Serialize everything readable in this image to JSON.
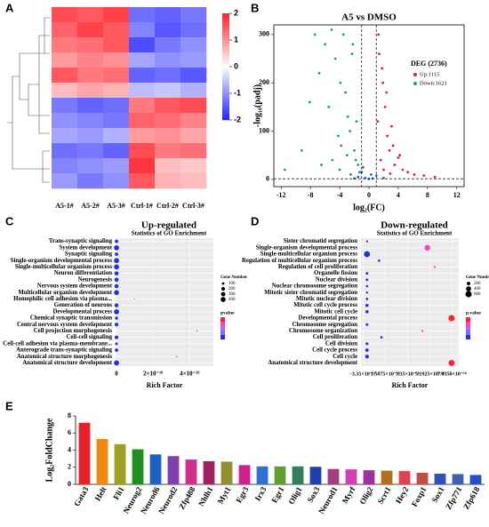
{
  "chart_data": [
    {
      "type": "heatmap",
      "panel": "A",
      "columns": [
        "A5-1#",
        "A5-2#",
        "A5-3#",
        "Ctrl-1#",
        "Ctrl-2#",
        "Ctrl-3#"
      ],
      "matrix": [
        [
          1.6,
          1.5,
          1.7,
          -1.3,
          -1.4,
          -1.2
        ],
        [
          1.4,
          1.7,
          1.5,
          -1.1,
          -1.5,
          -1.3
        ],
        [
          1.2,
          1.3,
          1.5,
          -1.6,
          -1.2,
          -1.0
        ],
        [
          0.9,
          1.1,
          1.0,
          -0.8,
          -1.0,
          -0.9
        ],
        [
          1.5,
          1.2,
          1.3,
          -1.4,
          -1.3,
          -1.5
        ],
        [
          0.6,
          0.8,
          0.7,
          -0.6,
          -0.5,
          -0.7
        ],
        [
          -1.2,
          -1.4,
          -1.3,
          1.2,
          1.5,
          1.6
        ],
        [
          -1.0,
          -1.1,
          -1.2,
          1.4,
          1.3,
          1.1
        ],
        [
          -0.8,
          -0.9,
          -0.7,
          0.9,
          1.0,
          0.8
        ],
        [
          -1.3,
          -1.2,
          -1.4,
          1.6,
          1.2,
          1.3
        ],
        [
          -1.1,
          -1.0,
          -0.9,
          1.8,
          0.6,
          0.5
        ],
        [
          -0.9,
          -1.2,
          -1.0,
          1.5,
          0.7,
          0.6
        ]
      ],
      "clim": [
        -2,
        2
      ],
      "colorbar_ticks": [
        2,
        1,
        0,
        -1,
        -2
      ]
    },
    {
      "type": "volcano",
      "panel": "B",
      "title": "A5 vs DMSO",
      "xlabel": "log₂(FC)",
      "ylabel": "-log₁₀(padj)",
      "legend_title": "DEG (2736)",
      "xlim": [
        -13,
        13
      ],
      "ylim": [
        -15,
        320
      ],
      "xticks": [
        -12,
        -8,
        -4,
        0,
        4,
        8,
        12
      ],
      "yticks": [
        0,
        100,
        200,
        300
      ],
      "vlines": [
        -1,
        1
      ],
      "hlines": [
        1.3
      ],
      "series": [
        {
          "name": "Up:1115",
          "color": "#e8203a",
          "x": [
            1.2,
            1.4,
            1.6,
            1.9,
            2.2,
            2.5,
            2.8,
            3.1,
            3.5,
            4.0,
            4.6,
            5.3,
            6.2,
            7.5,
            9.0,
            1.3,
            2.0,
            2.4,
            3.3,
            1.8,
            2.9,
            4.2
          ],
          "values": [
            120,
            260,
            40,
            200,
            150,
            90,
            60,
            110,
            30,
            45,
            20,
            15,
            10,
            8,
            5,
            300,
            20,
            180,
            70,
            230,
            12,
            50
          ]
        },
        {
          "name": "Down:1621",
          "color": "#1aa37a",
          "x": [
            -11.5,
            -9.2,
            -8.1,
            -7.4,
            -6.8,
            -6.0,
            -5.5,
            -5.1,
            -4.6,
            -4.2,
            -3.9,
            -3.5,
            -3.2,
            -2.9,
            -2.6,
            -2.3,
            -2.0,
            -1.8,
            -1.5,
            -1.3,
            -3.0,
            -4.0,
            -2.5,
            -1.7,
            -6.5,
            -3.8,
            -2.2,
            -5.0
          ],
          "values": [
            20,
            60,
            160,
            300,
            220,
            280,
            150,
            310,
            250,
            90,
            200,
            300,
            180,
            130,
            100,
            260,
            60,
            40,
            30,
            15,
            50,
            20,
            10,
            120,
            30,
            70,
            280,
            40
          ]
        },
        {
          "color": "#3060c0",
          "x": [
            -1.5,
            -1,
            -0.5,
            0,
            0.5,
            1,
            -0.8,
            0.3,
            -2,
            2
          ],
          "values": [
            5,
            15,
            3,
            1,
            2,
            8,
            25,
            10,
            2,
            3
          ]
        }
      ]
    },
    {
      "type": "dotplot",
      "panel": "C",
      "title": "Up-regulated",
      "subtitle": "Statistics of GO Enrichment",
      "xlabel": "Rich Factor",
      "categories": [
        "Trans-synaptic signaling",
        "System development",
        "Synaptic signaling",
        "Single-organism developmental process",
        "Single-multicellular organism process",
        "Neuron differentiation",
        "Neurogenesis",
        "Nervous system development",
        "Multicellular organism development",
        "Homophilic cell adhesion via plasma...",
        "Generation of neurons",
        "Developmental process",
        "Chemical synaptic transmission",
        "Central nervous system development",
        "Cell projection morphogenesis",
        "Cell-cell signaling",
        "Cell-cell adhesion via plasma-membrane...",
        "Anterograde trans-synaptic signaling",
        "Anatomical structure morphogenesis",
        "Anatomical structure development"
      ],
      "values": [
        0,
        0,
        0,
        0,
        0,
        0,
        0,
        0,
        0,
        1e-16,
        0,
        0,
        0,
        0,
        4.4e-16,
        0,
        0,
        0,
        3.3e-16,
        0
      ],
      "sizes": [
        180,
        400,
        180,
        400,
        400,
        250,
        260,
        260,
        380,
        20,
        240,
        400,
        150,
        200,
        20,
        200,
        120,
        180,
        30,
        400
      ],
      "colors": [
        "#2a2af0",
        "#2a2af0",
        "#2a2af0",
        "#2a2af0",
        "#2a2af0",
        "#2a2af0",
        "#2a2af0",
        "#2a2af0",
        "#2a2af0",
        "#c060ff",
        "#2a2af0",
        "#2a2af0",
        "#2a2af0",
        "#2a2af0",
        "#ff2050",
        "#2a2af0",
        "#2a2af0",
        "#2a2af0",
        "#ff40c0",
        "#2a2af0"
      ],
      "xlim": [
        -5e-18,
        5.3e-16
      ],
      "xticks": [
        0,
        {
          "value": 2e-16,
          "label": "2×10⁻¹⁶"
        },
        {
          "value": 4e-16,
          "label": "4×10⁻¹⁶"
        }
      ],
      "size_title": "Gene Number",
      "size_ticks": [
        100,
        200,
        300,
        400
      ],
      "color_title": "pvalue"
    },
    {
      "type": "dotplot",
      "panel": "D",
      "title": "Down-regulated",
      "subtitle": "Statistics of GO Enrichment",
      "xlabel": "Rich Factor",
      "categories": [
        "Sister chromatid segregation",
        "Single-organism developmental process",
        "Single-multicellular organism process",
        "Regulation of multicellular organism process",
        "Regulation of cell proliferation",
        "Organelle fission",
        "Nuclear division",
        "Nuclear chromosome segregation",
        "Mitotic sister chromatid segregation",
        "Mitotic nuclear division",
        "Mitotic cell cycle process",
        "Mitotic cell cycle",
        "Developmental process",
        "Chromosome segregation",
        "Chromosome organization",
        "Cell proliferation",
        "Cell division",
        "Cell cycle process",
        "Cell cycle",
        "Anatomical structure development"
      ],
      "values": [
        0,
        5e-18,
        0,
        1e-18,
        5.6e-18,
        0,
        0,
        0,
        0,
        0,
        0,
        0,
        7e-18,
        0,
        4.6e-18,
        1.2e-18,
        0,
        0,
        0,
        7e-18
      ],
      "sizes": [
        60,
        500,
        560,
        80,
        60,
        100,
        100,
        80,
        70,
        90,
        150,
        160,
        600,
        100,
        60,
        90,
        120,
        180,
        200,
        560
      ],
      "colors": [
        "#2a2af0",
        "#ff40c0",
        "#2a2af0",
        "#2a2af0",
        "#ff40c0",
        "#2a2af0",
        "#2a2af0",
        "#2a2af0",
        "#2a2af0",
        "#2a2af0",
        "#2a2af0",
        "#2a2af0",
        "#ff2030",
        "#2a2af0",
        "#ff40c0",
        "#2a2af0",
        "#2a2af0",
        "#2a2af0",
        "#2a2af0",
        "#ff2030"
      ],
      "xlim": [
        -5e-19,
        7.6e-18
      ],
      "xticks": [
        {
          "value": -3.35e-19,
          "label": "-3.35×10⁻¹⁹"
        },
        {
          "value": 1.5075e-18,
          "label": "1.5075×10⁻¹⁸"
        },
        {
          "value": 3.35e-18,
          "label": "3.35×10⁻¹⁸"
        },
        {
          "value": 5.1925e-18,
          "label": "5.1925×10⁻¹⁸"
        },
        {
          "value": 7.035e-18,
          "label": "7.0350×10⁻¹⁸"
        }
      ],
      "size_title": "Gene Number",
      "size_ticks": [
        200,
        400,
        600
      ],
      "color_title": "p.value"
    },
    {
      "type": "bar",
      "panel": "E",
      "ylabel": "Log₂FoldChange",
      "categories": [
        "Gata3",
        "Helt",
        "Fli1",
        "Neurog2",
        "Neurod6",
        "Neurod2",
        "Zfp488",
        "Nhlh1",
        "Myt1",
        "Egr3",
        "Irx3",
        "Egr1",
        "Olig1",
        "Sox3",
        "Neurod1",
        "Myrf",
        "Olig2",
        "Scrt1",
        "Hey2",
        "Foxp1",
        "Sox1",
        "Zfp771",
        "Zfp618"
      ],
      "values": [
        7.2,
        5.3,
        4.7,
        4.1,
        3.5,
        3.3,
        2.9,
        2.7,
        2.65,
        2.25,
        2.1,
        2.1,
        2.1,
        2.05,
        1.8,
        1.75,
        1.65,
        1.6,
        1.55,
        1.35,
        1.25,
        1.2,
        1.1
      ],
      "colors": [
        "#e8202a",
        "#f08a10",
        "#a0a020",
        "#209020",
        "#2060c0",
        "#8040b0",
        "#d0308a",
        "#a02060",
        "#909030",
        "#d02090",
        "#3070d0",
        "#60a030",
        "#308060",
        "#2040b0",
        "#a04080",
        "#d040b0",
        "#a030a0",
        "#b07020",
        "#e04050",
        "#c05040",
        "#3050c0",
        "#4060b0",
        "#2050d0"
      ],
      "ylim": [
        0,
        8
      ],
      "yticks": [
        0,
        2,
        4,
        6,
        8
      ]
    }
  ]
}
